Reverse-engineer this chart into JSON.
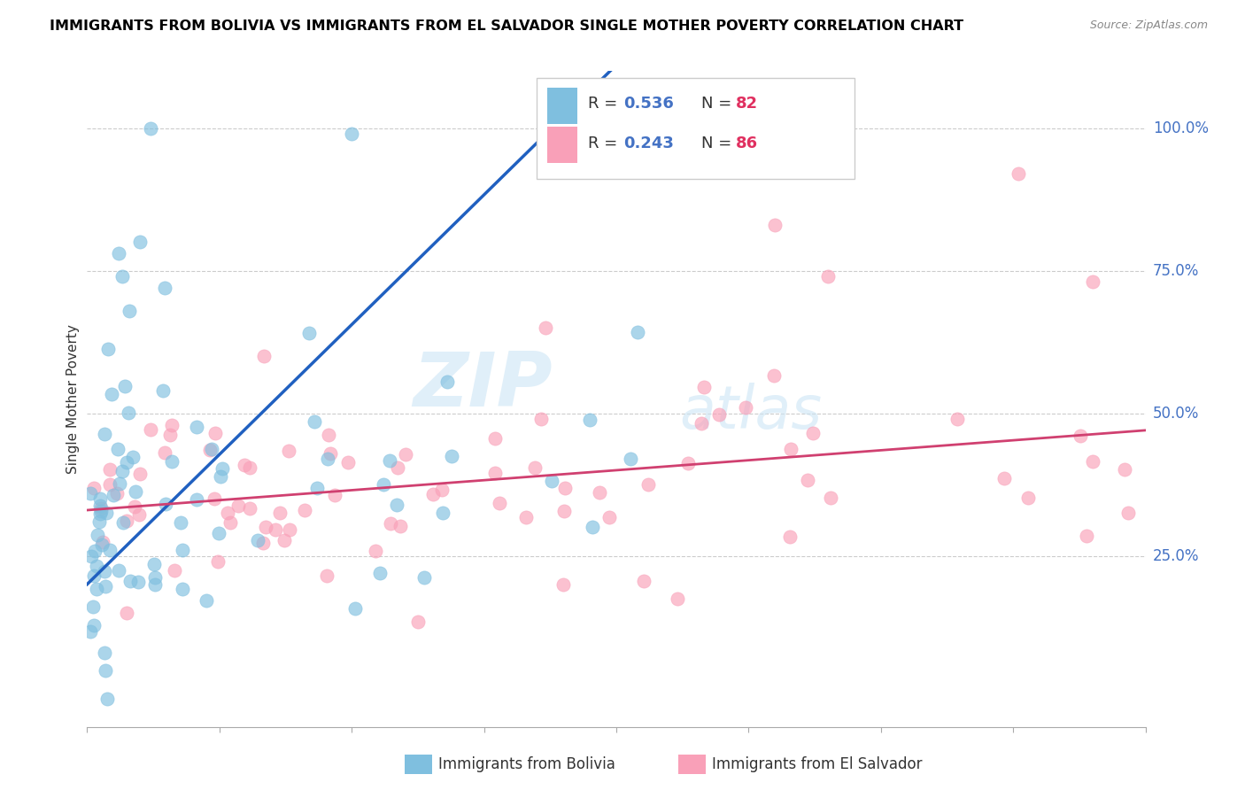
{
  "title": "IMMIGRANTS FROM BOLIVIA VS IMMIGRANTS FROM EL SALVADOR SINGLE MOTHER POVERTY CORRELATION CHART",
  "source": "Source: ZipAtlas.com",
  "ylabel": "Single Mother Poverty",
  "ytick_vals": [
    0.25,
    0.5,
    0.75,
    1.0
  ],
  "ytick_labels": [
    "25.0%",
    "50.0%",
    "75.0%",
    "100.0%"
  ],
  "xlim": [
    0.0,
    0.3
  ],
  "ylim": [
    -0.05,
    1.1
  ],
  "bolivia_R": 0.536,
  "bolivia_N": 82,
  "salvador_R": 0.243,
  "salvador_N": 86,
  "bolivia_color": "#7fbfdf",
  "salvador_color": "#f9a0b8",
  "bolivia_line_color": "#2060c0",
  "salvador_line_color": "#d04070",
  "watermark_zip": "ZIP",
  "watermark_atlas": "atlas",
  "legend_bolivia": "Immigrants from Bolivia",
  "legend_salvador": "Immigrants from El Salvador"
}
